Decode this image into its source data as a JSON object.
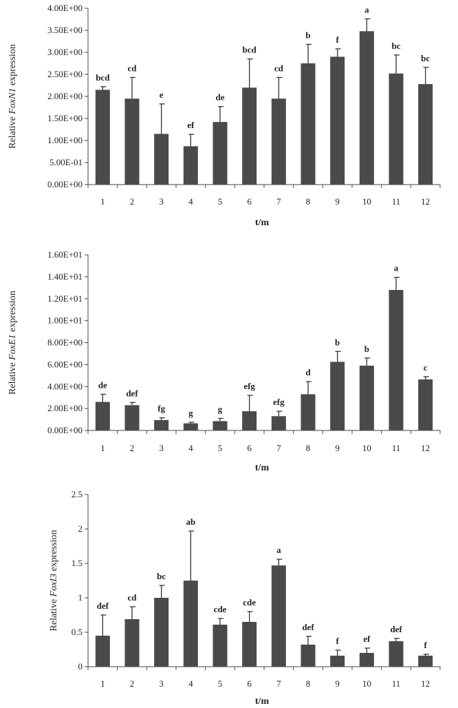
{
  "chart_data": [
    {
      "type": "bar",
      "ylabel_prefix": "Relative ",
      "ylabel_gene": "FoxN1",
      "ylabel_suffix": " expression",
      "xlabel": "t/m",
      "categories": [
        "1",
        "2",
        "3",
        "4",
        "5",
        "6",
        "7",
        "8",
        "9",
        "10",
        "11",
        "12"
      ],
      "values": [
        2.15,
        1.95,
        1.15,
        0.87,
        1.42,
        2.2,
        1.95,
        2.75,
        2.9,
        3.48,
        2.52,
        2.28
      ],
      "errors": [
        0.07,
        0.48,
        0.68,
        0.27,
        0.35,
        0.65,
        0.48,
        0.43,
        0.18,
        0.28,
        0.42,
        0.38
      ],
      "significance": [
        "bcd",
        "cd",
        "e",
        "ef",
        "de",
        "bcd",
        "cd",
        "b",
        "f",
        "a",
        "bc",
        "bc"
      ],
      "ylim": [
        0,
        4
      ],
      "yticks": [
        0,
        0.5,
        1,
        1.5,
        2,
        2.5,
        3,
        3.5,
        4
      ],
      "ytick_labels": [
        "0.00E+00",
        "5.00E-01",
        "1.00E+00",
        "1.50E+00",
        "2.00E+00",
        "2.50E+00",
        "3.00E+00",
        "3.50E+00",
        "4.00E+00"
      ]
    },
    {
      "type": "bar",
      "ylabel_prefix": "Relative ",
      "ylabel_gene": "FoxE1",
      "ylabel_suffix": " expression",
      "xlabel": "t/m",
      "categories": [
        "1",
        "2",
        "3",
        "4",
        "5",
        "6",
        "7",
        "8",
        "9",
        "10",
        "11",
        "12"
      ],
      "values": [
        2.6,
        2.3,
        0.95,
        0.65,
        0.85,
        1.75,
        1.3,
        3.3,
        6.25,
        5.9,
        12.8,
        4.65
      ],
      "errors": [
        0.7,
        0.25,
        0.2,
        0.1,
        0.25,
        1.45,
        0.45,
        1.15,
        0.95,
        0.7,
        1.15,
        0.25
      ],
      "significance": [
        "de",
        "def",
        "fg",
        "g",
        "g",
        "efg",
        "efg",
        "d",
        "b",
        "b",
        "a",
        "c"
      ],
      "ylim": [
        0,
        16
      ],
      "yticks": [
        0,
        2,
        4,
        6,
        8,
        10,
        12,
        14,
        16
      ],
      "ytick_labels": [
        "0.00E+00",
        "2.00E+00",
        "4.00E+00",
        "6.00E+00",
        "8.00E+00",
        "1.00E+01",
        "1.20E+01",
        "1.40E+01",
        "1.60E+01"
      ]
    },
    {
      "type": "bar",
      "ylabel_prefix": "Relative ",
      "ylabel_gene": "FoxI3",
      "ylabel_suffix": "  expression",
      "xlabel": "t/m",
      "categories": [
        "1",
        "2",
        "3",
        "4",
        "5",
        "6",
        "7",
        "8",
        "9",
        "10",
        "11",
        "12"
      ],
      "values": [
        0.45,
        0.69,
        1.0,
        1.25,
        0.61,
        0.65,
        1.47,
        0.32,
        0.16,
        0.2,
        0.37,
        0.16
      ],
      "errors": [
        0.3,
        0.18,
        0.18,
        0.72,
        0.09,
        0.15,
        0.09,
        0.12,
        0.08,
        0.07,
        0.04,
        0.02
      ],
      "significance": [
        "def",
        "cd",
        "bc",
        "ab",
        "cde",
        "cde",
        "a",
        "def",
        "f",
        "ef",
        "def",
        "f"
      ],
      "ylim": [
        0,
        2.5
      ],
      "yticks": [
        0,
        0.5,
        1,
        1.5,
        2,
        2.5
      ],
      "ytick_labels": [
        "0",
        "0.5",
        "1",
        "1.5",
        "2",
        "2.5"
      ]
    }
  ]
}
